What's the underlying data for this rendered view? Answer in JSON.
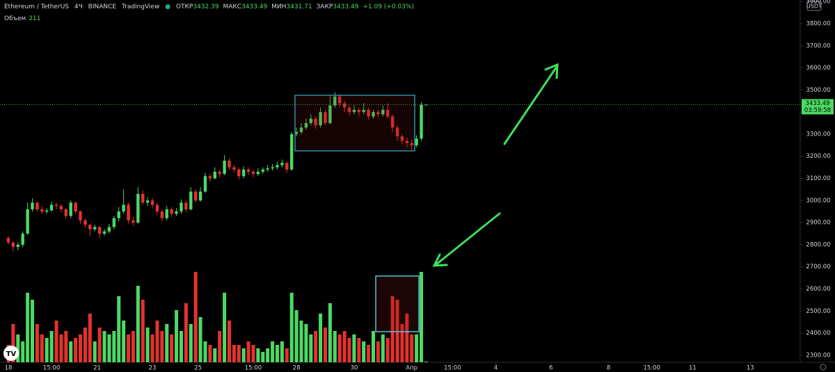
{
  "chart_data": {
    "type": "candlestick",
    "title": "Ethereum / TetherUS",
    "interval": "4Ч",
    "exchange": "BINANCE",
    "source": "TradingView",
    "ohlc_labels": [
      "ОТКР",
      "МАКС",
      "МИН",
      "ЗАКР"
    ],
    "change": "+1.09 (+0.03%)",
    "volume_label": "Объем",
    "currency": "USDT",
    "countdown": "03:59:58",
    "up_color": "#4cd964",
    "down_color": "#e5322d",
    "open": [
      2830,
      2810,
      2790,
      2800,
      2850,
      2960,
      2990,
      2960,
      2950,
      2955,
      2980,
      2975,
      2960,
      2930,
      2990,
      2950,
      2910,
      2890,
      2870,
      2880,
      2850,
      2860,
      2880,
      2920,
      2950,
      2980,
      2910,
      2900,
      3030,
      2990,
      3000,
      2980,
      2950,
      2920,
      2960,
      2940,
      2950,
      2990,
      2960,
      3040,
      3000,
      3040,
      3110,
      3100,
      3130,
      3120,
      3180,
      3150,
      3140,
      3110,
      3140,
      3130,
      3120,
      3130,
      3140,
      3145,
      3150,
      3160,
      3170,
      3140,
      3300,
      3310,
      3330,
      3350,
      3370,
      3340,
      3400,
      3350,
      3430,
      3470,
      3440,
      3420,
      3400,
      3410,
      3400,
      3410,
      3380,
      3400,
      3390,
      3410,
      3380,
      3330,
      3290,
      3270,
      3260,
      3250,
      3280,
      3432.39
    ],
    "high": [
      2840,
      2815,
      2810,
      2860,
      2990,
      3010,
      2995,
      2975,
      2965,
      2995,
      2990,
      2985,
      2965,
      3000,
      2995,
      2955,
      2920,
      2895,
      2890,
      2885,
      2870,
      2895,
      2930,
      2970,
      3050,
      2990,
      2925,
      3060,
      3045,
      3015,
      3010,
      2990,
      2960,
      2975,
      2970,
      2965,
      3005,
      3000,
      3060,
      3050,
      3060,
      3125,
      3120,
      3150,
      3140,
      3205,
      3190,
      3160,
      3150,
      3155,
      3150,
      3140,
      3145,
      3150,
      3160,
      3165,
      3175,
      3185,
      3175,
      3310,
      3330,
      3350,
      3370,
      3390,
      3380,
      3420,
      3410,
      3470,
      3490,
      3480,
      3450,
      3430,
      3430,
      3420,
      3440,
      3420,
      3410,
      3410,
      3430,
      3440,
      3390,
      3340,
      3300,
      3285,
      3275,
      3295,
      3445,
      3433.49
    ],
    "low": [
      2800,
      2770,
      2775,
      2790,
      2845,
      2950,
      2950,
      2940,
      2940,
      2950,
      2960,
      2945,
      2915,
      2920,
      2940,
      2895,
      2875,
      2840,
      2860,
      2830,
      2840,
      2850,
      2870,
      2905,
      2940,
      2895,
      2885,
      2895,
      2980,
      2975,
      2965,
      2935,
      2905,
      2910,
      2925,
      2930,
      2940,
      2945,
      2955,
      2990,
      2995,
      3035,
      3085,
      3095,
      3105,
      3115,
      3140,
      3125,
      3095,
      3100,
      3115,
      3105,
      3110,
      3120,
      3130,
      3135,
      3140,
      3150,
      3125,
      3135,
      3290,
      3300,
      3320,
      3340,
      3325,
      3330,
      3340,
      3345,
      3420,
      3425,
      3400,
      3385,
      3390,
      3380,
      3390,
      3365,
      3370,
      3375,
      3380,
      3370,
      3310,
      3270,
      3255,
      3240,
      3225,
      3240,
      3270,
      3431.71
    ],
    "close": [
      2810,
      2790,
      2800,
      2850,
      2960,
      2990,
      2960,
      2950,
      2955,
      2980,
      2975,
      2960,
      2930,
      2990,
      2950,
      2910,
      2890,
      2870,
      2880,
      2850,
      2860,
      2880,
      2920,
      2950,
      2980,
      2910,
      2900,
      3030,
      2990,
      3000,
      2980,
      2950,
      2920,
      2960,
      2940,
      2950,
      2990,
      2960,
      3040,
      3000,
      3040,
      3110,
      3100,
      3130,
      3120,
      3180,
      3150,
      3140,
      3110,
      3140,
      3130,
      3120,
      3130,
      3140,
      3145,
      3150,
      3160,
      3170,
      3140,
      3300,
      3310,
      3330,
      3350,
      3370,
      3340,
      3400,
      3350,
      3430,
      3470,
      3440,
      3420,
      3400,
      3410,
      3400,
      3410,
      3380,
      3400,
      3390,
      3410,
      3380,
      3330,
      3290,
      3270,
      3260,
      3250,
      3280,
      3432.39,
      3433.49
    ],
    "volume": [
      5000,
      11000,
      8000,
      6000,
      20000,
      18000,
      11000,
      8000,
      7000,
      9000,
      12000,
      8000,
      9000,
      6000,
      7000,
      8000,
      10000,
      14000,
      6000,
      10000,
      9000,
      8000,
      9000,
      19000,
      12000,
      8000,
      9000,
      22000,
      18000,
      10000,
      8000,
      12000,
      9000,
      11000,
      8000,
      15000,
      9000,
      17000,
      11000,
      26000,
      13000,
      6000,
      5000,
      4000,
      9000,
      20000,
      12000,
      5000,
      5000,
      4000,
      6000,
      5000,
      4000,
      3000,
      4000,
      6000,
      5000,
      6000,
      4000,
      20000,
      15000,
      12000,
      11000,
      8000,
      9000,
      14000,
      10000,
      17000,
      9000,
      8000,
      9000,
      7000,
      8000,
      7000,
      6000,
      5000,
      9000,
      6000,
      8000,
      7000,
      19000,
      18000,
      11000,
      14000,
      8000,
      8000,
      26000,
      211
    ],
    "xlim": [
      -1.74,
      164.9
    ],
    "xticks": [
      {
        "value": 0,
        "label": "18"
      },
      {
        "value": 9,
        "label": "15:00"
      },
      {
        "value": 18.5,
        "label": "21"
      },
      {
        "value": 30,
        "label": "23"
      },
      {
        "value": 39.5,
        "label": "25"
      },
      {
        "value": 51,
        "label": "15:00"
      },
      {
        "value": 60,
        "label": "28"
      },
      {
        "value": 72,
        "label": "30"
      },
      {
        "value": 84,
        "label": "Апр"
      },
      {
        "value": 92.5,
        "label": "15:00"
      },
      {
        "value": 101.5,
        "label": "4"
      },
      {
        "value": 113,
        "label": "6"
      },
      {
        "value": 125,
        "label": "8"
      },
      {
        "value": 134,
        "label": "15:00"
      },
      {
        "value": 142.5,
        "label": "11"
      },
      {
        "value": 154.5,
        "label": "13"
      }
    ],
    "ylim": [
      2268,
      3907
    ],
    "yticks": [
      {
        "value": 2300,
        "label": "2300.00"
      },
      {
        "value": 2400,
        "label": "2400.00"
      },
      {
        "value": 2500,
        "label": "2500.00"
      },
      {
        "value": 2600,
        "label": "2600.00"
      },
      {
        "value": 2700,
        "label": "2700.00"
      },
      {
        "value": 2800,
        "label": "2800.00"
      },
      {
        "value": 2900,
        "label": "2900.00"
      },
      {
        "value": 3000,
        "label": "3000.00"
      },
      {
        "value": 3100,
        "label": "3100.00"
      },
      {
        "value": 3200,
        "label": "3200.00"
      },
      {
        "value": 3300,
        "label": "3300.00"
      },
      {
        "value": 3400,
        "label": "3400.00"
      },
      {
        "value": 3500,
        "label": "3500.00"
      },
      {
        "value": 3600,
        "label": "3600.00"
      },
      {
        "value": 3700,
        "label": "3700.00"
      },
      {
        "value": 3800,
        "label": "3800.00"
      },
      {
        "value": 3900,
        "label": "3900.00"
      }
    ],
    "volume_ylim": [
      0,
      27000
    ]
  }
}
